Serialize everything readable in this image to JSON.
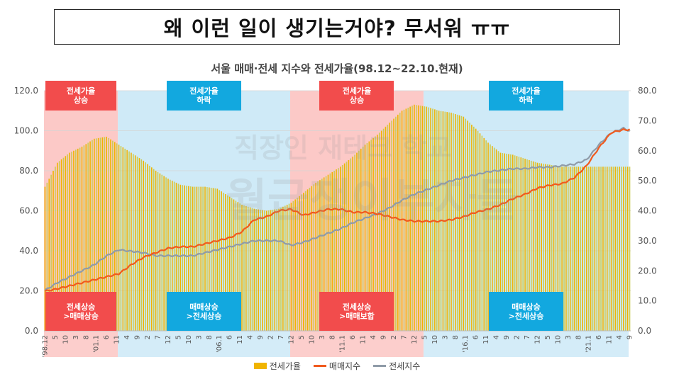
{
  "headline": "왜 이런 일이 생기는거야? 무서워 ㅠㅠ",
  "watermark": {
    "line1": "직장인 재테크 학교",
    "line2": "월급쟁이부자들"
  },
  "colors": {
    "bar": "#f0b400",
    "bar_alt": "#c9cc55",
    "sale_line": "#f05a1e",
    "jeonse_line": "#8f9ba8",
    "phase_rise": "#fcc9c7",
    "phase_fall": "#cfeaf7",
    "label_red": "#f24c4c",
    "label_blue": "#12a8df"
  },
  "chart_data": {
    "type": "bar",
    "title": "서울 매매·전세 지수와 전세가율(98.12~22.10.현재)",
    "x_range": [
      "1998-12",
      "2022-09"
    ],
    "x_tick_labels": [
      "'98.12",
      "5",
      "10",
      "3",
      "8",
      "'01.1",
      "6",
      "11",
      "4",
      "9",
      "2",
      "7",
      "12",
      "5",
      "10",
      "3",
      "8",
      "'06.1",
      "6",
      "11",
      "4",
      "9",
      "2",
      "7",
      "12",
      "5",
      "10",
      "3",
      "8",
      "'11.1",
      "6",
      "11",
      "4",
      "9",
      "2",
      "7",
      "12",
      "5",
      "10",
      "3",
      "8",
      "'16.1",
      "6",
      "11",
      "4",
      "9",
      "2",
      "7",
      "12",
      "5",
      "10",
      "3",
      "8",
      "'21.1",
      "6",
      "11",
      "4",
      "9"
    ],
    "y_left": {
      "min": 0,
      "max": 120,
      "ticks": [
        "0.0",
        "20.0",
        "40.0",
        "60.0",
        "80.0",
        "100.0",
        "120.0"
      ]
    },
    "y_right": {
      "min": 0,
      "max": 80,
      "ticks": [
        "0.0",
        "10.0",
        "20.0",
        "30.0",
        "40.0",
        "50.0",
        "60.0",
        "70.0",
        "80.0"
      ]
    },
    "series": [
      {
        "name": "전세가율",
        "kind": "bar",
        "axis": "left",
        "keypoints": [
          [
            0,
            72
          ],
          [
            6,
            84
          ],
          [
            12,
            89
          ],
          [
            18,
            92
          ],
          [
            24,
            96
          ],
          [
            30,
            97
          ],
          [
            36,
            93
          ],
          [
            42,
            89
          ],
          [
            48,
            85
          ],
          [
            54,
            80
          ],
          [
            60,
            76
          ],
          [
            66,
            73
          ],
          [
            72,
            72
          ],
          [
            78,
            72
          ],
          [
            84,
            71
          ],
          [
            90,
            67
          ],
          [
            96,
            63
          ],
          [
            102,
            61
          ],
          [
            108,
            60
          ],
          [
            114,
            61
          ],
          [
            120,
            64
          ],
          [
            126,
            69
          ],
          [
            132,
            74
          ],
          [
            138,
            78
          ],
          [
            144,
            82
          ],
          [
            150,
            87
          ],
          [
            156,
            93
          ],
          [
            162,
            98
          ],
          [
            168,
            104
          ],
          [
            174,
            110
          ],
          [
            180,
            113
          ],
          [
            186,
            112
          ],
          [
            192,
            110
          ],
          [
            198,
            109
          ],
          [
            204,
            107
          ],
          [
            210,
            101
          ],
          [
            216,
            94
          ],
          [
            222,
            89
          ],
          [
            228,
            88
          ],
          [
            234,
            86
          ],
          [
            240,
            84
          ],
          [
            246,
            83
          ],
          [
            252,
            82
          ],
          [
            258,
            82
          ],
          [
            264,
            82
          ],
          [
            285,
            82
          ]
        ]
      },
      {
        "name": "매매지수",
        "kind": "line",
        "axis": "right",
        "keypoints": [
          [
            0,
            13.2
          ],
          [
            6,
            14
          ],
          [
            12,
            15
          ],
          [
            18,
            16
          ],
          [
            24,
            17
          ],
          [
            30,
            18
          ],
          [
            36,
            19
          ],
          [
            42,
            22
          ],
          [
            48,
            24.5
          ],
          [
            54,
            26
          ],
          [
            60,
            27.5
          ],
          [
            66,
            28
          ],
          [
            72,
            28
          ],
          [
            78,
            29
          ],
          [
            84,
            30
          ],
          [
            90,
            31
          ],
          [
            96,
            33
          ],
          [
            102,
            37
          ],
          [
            108,
            38
          ],
          [
            114,
            40
          ],
          [
            120,
            40.5
          ],
          [
            126,
            38.5
          ],
          [
            132,
            39.5
          ],
          [
            138,
            40.5
          ],
          [
            144,
            40.5
          ],
          [
            150,
            39.5
          ],
          [
            156,
            39.5
          ],
          [
            162,
            39
          ],
          [
            168,
            38
          ],
          [
            174,
            37
          ],
          [
            180,
            36.5
          ],
          [
            186,
            36.5
          ],
          [
            192,
            36.5
          ],
          [
            198,
            37
          ],
          [
            204,
            38
          ],
          [
            210,
            39.5
          ],
          [
            216,
            40.5
          ],
          [
            222,
            42
          ],
          [
            228,
            44
          ],
          [
            234,
            45.5
          ],
          [
            240,
            47.5
          ],
          [
            246,
            48.5
          ],
          [
            252,
            49
          ],
          [
            258,
            51
          ],
          [
            264,
            55
          ],
          [
            270,
            61
          ],
          [
            276,
            66
          ],
          [
            282,
            67
          ],
          [
            285,
            67
          ]
        ]
      },
      {
        "name": "전세지수",
        "kind": "line",
        "axis": "right",
        "keypoints": [
          [
            0,
            13.5
          ],
          [
            6,
            16
          ],
          [
            12,
            18
          ],
          [
            18,
            20
          ],
          [
            24,
            22
          ],
          [
            30,
            25
          ],
          [
            36,
            27
          ],
          [
            42,
            26.5
          ],
          [
            48,
            26
          ],
          [
            54,
            25
          ],
          [
            60,
            25
          ],
          [
            66,
            25
          ],
          [
            72,
            25
          ],
          [
            78,
            26
          ],
          [
            84,
            27
          ],
          [
            90,
            28
          ],
          [
            96,
            29
          ],
          [
            102,
            30
          ],
          [
            108,
            30
          ],
          [
            114,
            30
          ],
          [
            120,
            28.5
          ],
          [
            126,
            29.5
          ],
          [
            132,
            31
          ],
          [
            138,
            32.5
          ],
          [
            144,
            34
          ],
          [
            150,
            36
          ],
          [
            156,
            37.5
          ],
          [
            162,
            39
          ],
          [
            168,
            41
          ],
          [
            174,
            43.5
          ],
          [
            180,
            45.5
          ],
          [
            186,
            47
          ],
          [
            192,
            48.5
          ],
          [
            198,
            50
          ],
          [
            204,
            51
          ],
          [
            210,
            52
          ],
          [
            216,
            53
          ],
          [
            222,
            53.5
          ],
          [
            228,
            54
          ],
          [
            234,
            54
          ],
          [
            240,
            54.5
          ],
          [
            246,
            54.5
          ],
          [
            252,
            55
          ],
          [
            258,
            55.5
          ],
          [
            264,
            57
          ],
          [
            270,
            62
          ],
          [
            276,
            66
          ],
          [
            282,
            67.5
          ],
          [
            285,
            66.5
          ]
        ]
      }
    ],
    "phases": [
      {
        "start": 0,
        "end": 36,
        "fill": "rise",
        "top_label": "전세가율\n상승",
        "bottom_label": "전세상승\n>매매상승"
      },
      {
        "start": 36,
        "end": 120,
        "fill": "fall",
        "top_label": "전세가율\n하락",
        "bottom_label": "매매상승\n>전세상승"
      },
      {
        "start": 120,
        "end": 185,
        "fill": "rise",
        "top_label": "전세가율\n상승",
        "bottom_label": "전세상승\n>매매보합"
      },
      {
        "start": 185,
        "end": 285,
        "fill": "fall",
        "top_label": "전세가율\n하락",
        "bottom_label": "매매상승\n>전세상승"
      }
    ],
    "grid": true,
    "legend_position": "bottom"
  }
}
